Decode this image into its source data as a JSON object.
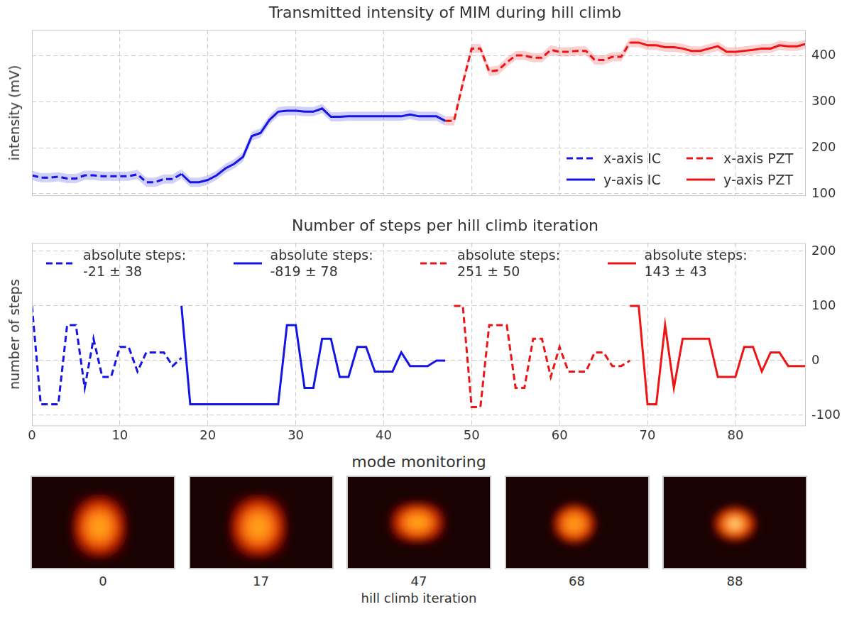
{
  "chart_data": [
    {
      "type": "line",
      "title": "Transmitted intensity of MIM during hill climb",
      "ylabel": "intensity (mV)",
      "xlim": [
        0,
        88
      ],
      "xticks": [
        0,
        10,
        20,
        30,
        40,
        50,
        60,
        70,
        80
      ],
      "ylim": [
        95,
        455
      ],
      "yticks": [
        100,
        200,
        300,
        400
      ],
      "grid": true,
      "legend": "lower right",
      "tick_labels": "y",
      "series": [
        {
          "name": "x-axis IC",
          "color": "#1414e6",
          "line_style": "dashed",
          "error": 10,
          "x": [
            0,
            1,
            2,
            3,
            4,
            5,
            6,
            7,
            8,
            9,
            10,
            11,
            12,
            13,
            14,
            15,
            16,
            17
          ],
          "values": [
            140,
            135,
            135,
            137,
            133,
            133,
            140,
            140,
            138,
            138,
            138,
            138,
            142,
            125,
            125,
            132,
            132,
            143
          ]
        },
        {
          "name": "y-axis IC",
          "color": "#1414e6",
          "line_style": "solid",
          "error": 10,
          "x": [
            17,
            18,
            19,
            20,
            21,
            22,
            23,
            24,
            25,
            26,
            27,
            28,
            29,
            30,
            31,
            32,
            33,
            34,
            35,
            36,
            37,
            38,
            39,
            40,
            41,
            42,
            43,
            44,
            45,
            46,
            47
          ],
          "values": [
            143,
            125,
            125,
            130,
            140,
            155,
            165,
            180,
            225,
            232,
            260,
            278,
            280,
            280,
            278,
            278,
            285,
            267,
            267,
            268,
            268,
            268,
            268,
            268,
            268,
            268,
            272,
            268,
            268,
            268,
            258
          ]
        },
        {
          "name": "x-axis PZT",
          "color": "#ee1414",
          "line_style": "dashed",
          "error": 10,
          "x": [
            47,
            48,
            49,
            50,
            51,
            52,
            53,
            54,
            55,
            56,
            57,
            58,
            59,
            60,
            61,
            62,
            63,
            64,
            65,
            66,
            67,
            68
          ],
          "values": [
            258,
            258,
            340,
            415,
            415,
            365,
            368,
            385,
            400,
            400,
            395,
            395,
            412,
            408,
            408,
            410,
            410,
            390,
            390,
            397,
            397,
            428
          ]
        },
        {
          "name": "y-axis PZT",
          "color": "#ee1414",
          "line_style": "solid",
          "error": 10,
          "x": [
            68,
            69,
            70,
            71,
            72,
            73,
            74,
            75,
            76,
            77,
            78,
            79,
            80,
            81,
            82,
            83,
            84,
            85,
            86,
            87,
            88
          ],
          "values": [
            428,
            428,
            422,
            422,
            418,
            418,
            415,
            410,
            410,
            415,
            420,
            408,
            408,
            410,
            412,
            415,
            415,
            422,
            420,
            420,
            425
          ]
        }
      ]
    },
    {
      "type": "line",
      "title": "Number of steps per hill climb iteration",
      "ylabel": "number of steps",
      "xlim": [
        0,
        88
      ],
      "xticks": [
        0,
        10,
        20,
        30,
        40,
        50,
        60,
        70,
        80
      ],
      "ylim": [
        -120,
        215
      ],
      "yticks": [
        -100,
        0,
        100,
        200
      ],
      "grid": true,
      "legend": "top",
      "tick_labels": true,
      "series": [
        {
          "name": "absolute steps: -21 ± 38",
          "color": "#1414e6",
          "line_style": "dashed",
          "x": [
            0,
            1,
            2,
            3,
            4,
            5,
            6,
            7,
            8,
            9,
            10,
            11,
            12,
            13,
            14,
            15,
            16,
            17
          ],
          "values": [
            100,
            -80,
            -80,
            -80,
            65,
            65,
            -50,
            40,
            -30,
            -30,
            25,
            25,
            -20,
            15,
            15,
            15,
            -10,
            5
          ]
        },
        {
          "name": "absolute steps: -819 ± 78",
          "color": "#1414e6",
          "line_style": "solid",
          "x": [
            17,
            18,
            19,
            20,
            21,
            22,
            23,
            24,
            25,
            26,
            27,
            28,
            29,
            30,
            31,
            32,
            33,
            34,
            35,
            36,
            37,
            38,
            39,
            40,
            41,
            42,
            43,
            44,
            45,
            46,
            47
          ],
          "values": [
            100,
            -80,
            -80,
            -80,
            -80,
            -80,
            -80,
            -80,
            -80,
            -80,
            -80,
            -80,
            65,
            65,
            -50,
            -50,
            40,
            40,
            -30,
            -30,
            25,
            25,
            -20,
            -20,
            -20,
            15,
            -10,
            -10,
            -10,
            0,
            0
          ]
        },
        {
          "name": "absolute steps: 251 ± 50",
          "color": "#ee1414",
          "line_style": "dashed",
          "x": [
            48,
            49,
            50,
            51,
            52,
            53,
            54,
            55,
            56,
            57,
            58,
            59,
            60,
            61,
            62,
            63,
            64,
            65,
            66,
            67,
            68
          ],
          "values": [
            100,
            100,
            -85,
            -85,
            65,
            65,
            65,
            -50,
            -50,
            40,
            40,
            -30,
            25,
            -20,
            -20,
            -20,
            15,
            15,
            -10,
            -10,
            0
          ]
        },
        {
          "name": "absolute steps: 143 ± 43",
          "color": "#ee1414",
          "line_style": "solid",
          "x": [
            68,
            69,
            70,
            71,
            72,
            73,
            74,
            75,
            76,
            77,
            78,
            79,
            80,
            81,
            82,
            83,
            84,
            85,
            86,
            87,
            88
          ],
          "values": [
            100,
            100,
            -80,
            -80,
            65,
            -50,
            40,
            40,
            40,
            40,
            -30,
            -30,
            -30,
            25,
            25,
            -20,
            15,
            15,
            -10,
            -10,
            -10
          ]
        }
      ]
    }
  ],
  "mode_monitoring": {
    "title": "mode monitoring",
    "xlabel": "hill climb iteration",
    "frames": [
      0,
      17,
      47,
      68,
      88
    ]
  }
}
